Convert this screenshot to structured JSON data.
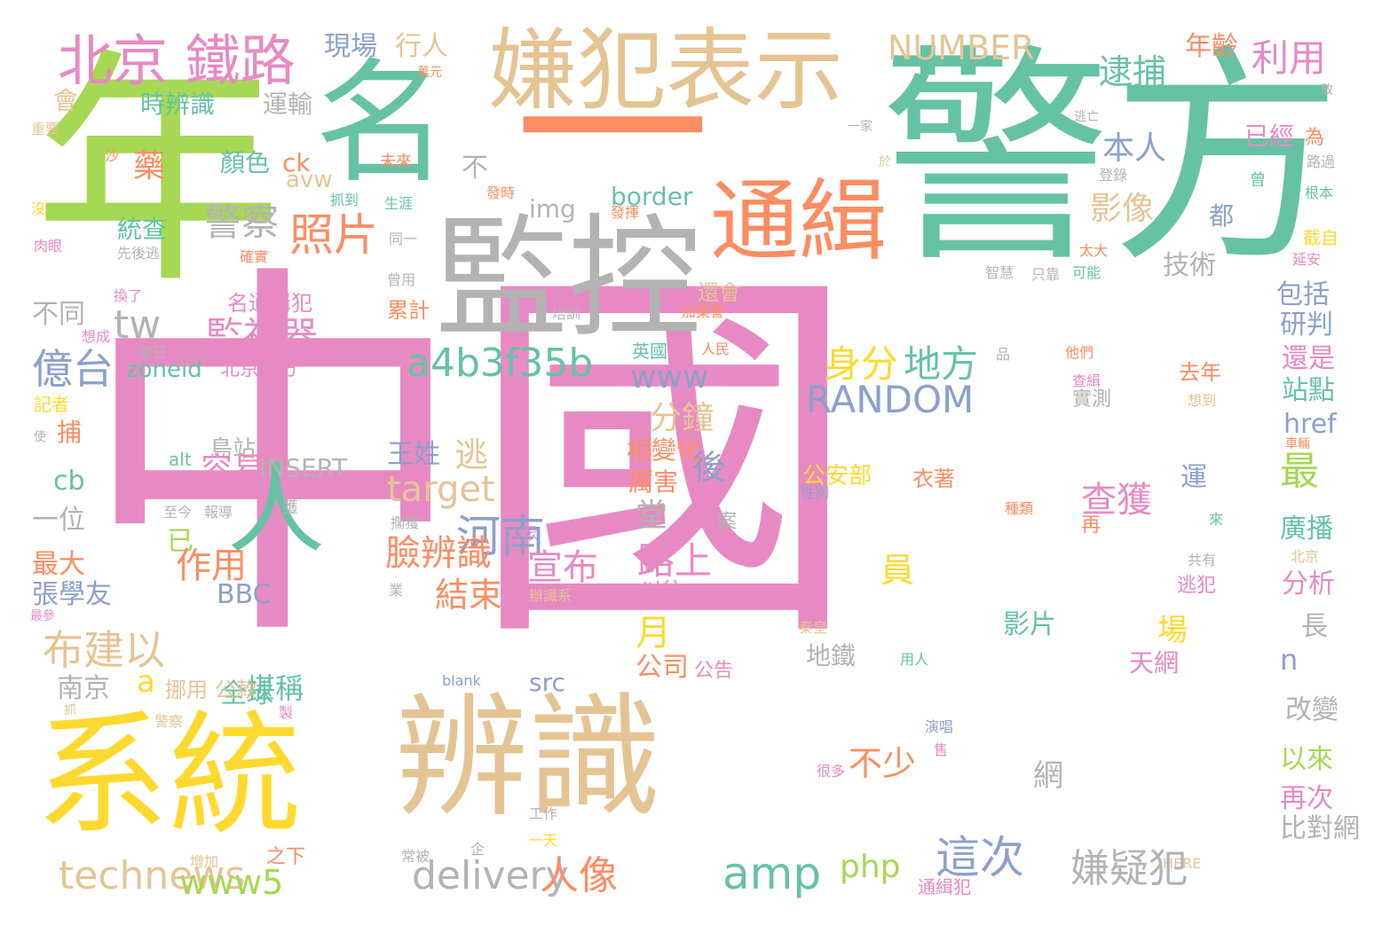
{
  "palette": {
    "pink": "#e78ac3",
    "teal": "#66c2a5",
    "tan": "#e5c494",
    "orange": "#fc8d62",
    "green": "#a6d854",
    "yellow": "#ffd92f",
    "gray": "#b3b3b3",
    "blue": "#8da0cb"
  },
  "words": [
    {
      "text": "中國",
      "color": "pink"
    },
    {
      "text": "警方",
      "color": "teal"
    },
    {
      "text": "年",
      "color": "green"
    },
    {
      "text": "名",
      "color": "teal"
    },
    {
      "text": "一",
      "color": "orange"
    },
    {
      "text": "嫌犯表示",
      "color": "tan"
    },
    {
      "text": "監控",
      "color": "gray"
    },
    {
      "text": "通緝",
      "color": "orange"
    },
    {
      "text": "辨識",
      "color": "tan"
    },
    {
      "text": "系統",
      "color": "yellow"
    },
    {
      "text": "北京 鐵路",
      "color": "pink"
    },
    {
      "text": "人",
      "color": "teal"
    },
    {
      "text": "NUMBER",
      "color": "tan"
    },
    {
      "text": "現場",
      "color": "blue"
    },
    {
      "text": "行人",
      "color": "tan"
    },
    {
      "text": "年齡",
      "color": "orange"
    },
    {
      "text": "利用",
      "color": "pink"
    },
    {
      "text": "逮捕",
      "color": "teal"
    },
    {
      "text": "時辨識",
      "color": "teal"
    },
    {
      "text": "運輸",
      "color": "gray"
    },
    {
      "text": "會",
      "color": "tan"
    },
    {
      "text": "萬元",
      "color": "orange"
    },
    {
      "text": "敗",
      "color": "gray"
    },
    {
      "text": "一家",
      "color": "gray"
    },
    {
      "text": "逃亡",
      "color": "gray"
    },
    {
      "text": "已經",
      "color": "pink"
    },
    {
      "text": "為",
      "color": "orange"
    },
    {
      "text": "重要",
      "color": "tan"
    },
    {
      "text": "沙",
      "color": "orange"
    },
    {
      "text": "藥",
      "color": "orange"
    },
    {
      "text": "顏色",
      "color": "teal"
    },
    {
      "text": "ck",
      "color": "orange"
    },
    {
      "text": "avw",
      "color": "tan"
    },
    {
      "text": "未來",
      "color": "orange"
    },
    {
      "text": "不",
      "color": "gray"
    },
    {
      "text": "於",
      "color": "tan"
    },
    {
      "text": "本人",
      "color": "blue"
    },
    {
      "text": "路過",
      "color": "gray"
    },
    {
      "text": "登錄",
      "color": "gray"
    },
    {
      "text": "曾",
      "color": "teal"
    },
    {
      "text": "根本",
      "color": "teal"
    },
    {
      "text": "發時",
      "color": "orange"
    },
    {
      "text": "border",
      "color": "teal"
    },
    {
      "text": "抓到",
      "color": "teal"
    },
    {
      "text": "生涯",
      "color": "teal"
    },
    {
      "text": "img",
      "color": "gray"
    },
    {
      "text": "發揮",
      "color": "orange"
    },
    {
      "text": "警察",
      "color": "gray"
    },
    {
      "text": "照片",
      "color": "orange"
    },
    {
      "text": "影像",
      "color": "tan"
    },
    {
      "text": "都",
      "color": "blue"
    },
    {
      "text": "截自",
      "color": "yellow"
    },
    {
      "text": "沒",
      "color": "yellow"
    },
    {
      "text": "肉眼",
      "color": "pink"
    },
    {
      "text": "統查",
      "color": "teal"
    },
    {
      "text": "先後逃",
      "color": "gray"
    },
    {
      "text": "同一",
      "color": "gray"
    },
    {
      "text": "確實",
      "color": "orange"
    },
    {
      "text": "太大",
      "color": "orange"
    },
    {
      "text": "延安",
      "color": "pink"
    },
    {
      "text": "技術",
      "color": "gray"
    },
    {
      "text": "智慧",
      "color": "gray"
    },
    {
      "text": "只靠",
      "color": "gray"
    },
    {
      "text": "可能",
      "color": "teal"
    },
    {
      "text": "換了",
      "color": "pink"
    },
    {
      "text": "名通緝犯",
      "color": "pink"
    },
    {
      "text": "曾用",
      "color": "gray"
    },
    {
      "text": "還會",
      "color": "tan"
    },
    {
      "text": "包括",
      "color": "blue"
    },
    {
      "text": "不同",
      "color": "gray"
    },
    {
      "text": "tw",
      "color": "gray"
    },
    {
      "text": "累計",
      "color": "orange"
    },
    {
      "text": "培訓",
      "color": "gray"
    },
    {
      "text": "加業警",
      "color": "orange"
    },
    {
      "text": "研判",
      "color": "blue"
    },
    {
      "text": "想成",
      "color": "pink"
    },
    {
      "text": "監視器",
      "color": "pink"
    },
    {
      "text": "度日",
      "color": "gray"
    },
    {
      "text": "英國",
      "color": "teal"
    },
    {
      "text": "人民",
      "color": "orange"
    },
    {
      "text": "億台",
      "color": "blue"
    },
    {
      "text": "a4b3f35b",
      "color": "teal"
    },
    {
      "text": "身分",
      "color": "yellow"
    },
    {
      "text": "地方",
      "color": "teal"
    },
    {
      "text": "品",
      "color": "gray"
    },
    {
      "text": "他們",
      "color": "orange"
    },
    {
      "text": "還是",
      "color": "pink"
    },
    {
      "text": "zoneid",
      "color": "teal"
    },
    {
      "text": "北京警方",
      "color": "pink"
    },
    {
      "text": "www",
      "color": "blue"
    },
    {
      "text": "查緝",
      "color": "pink"
    },
    {
      "text": "去年",
      "color": "orange"
    },
    {
      "text": "站點",
      "color": "teal"
    },
    {
      "text": "記者",
      "color": "yellow"
    },
    {
      "text": "RANDOM",
      "color": "blue"
    },
    {
      "text": "實測",
      "color": "gray"
    },
    {
      "text": "想到",
      "color": "tan"
    },
    {
      "text": "分鐘",
      "color": "tan"
    },
    {
      "text": "href",
      "color": "blue"
    },
    {
      "text": "捕",
      "color": "orange"
    },
    {
      "text": "使",
      "color": "gray"
    },
    {
      "text": "alt",
      "color": "teal"
    },
    {
      "text": "島站",
      "color": "gray"
    },
    {
      "text": "相變化",
      "color": "orange"
    },
    {
      "text": "車輛",
      "color": "orange"
    },
    {
      "text": "王姓",
      "color": "blue"
    },
    {
      "text": "逃",
      "color": "tan"
    },
    {
      "text": "後",
      "color": "blue"
    },
    {
      "text": "最",
      "color": "green"
    },
    {
      "text": "容易",
      "color": "pink"
    },
    {
      "text": "INSERT",
      "color": "gray"
    },
    {
      "text": "target",
      "color": "tan"
    },
    {
      "text": "公安部",
      "color": "yellow"
    },
    {
      "text": "衣著",
      "color": "orange"
    },
    {
      "text": "運",
      "color": "blue"
    },
    {
      "text": "cb",
      "color": "teal"
    },
    {
      "text": "查獲",
      "color": "pink"
    },
    {
      "text": "厲害",
      "color": "orange"
    },
    {
      "text": "性別",
      "color": "blue"
    },
    {
      "text": "一位",
      "color": "gray"
    },
    {
      "text": "至今",
      "color": "gray"
    },
    {
      "text": "報導",
      "color": "gray"
    },
    {
      "text": "獲",
      "color": "gray"
    },
    {
      "text": "河南",
      "color": "blue"
    },
    {
      "text": "堂",
      "color": "gray"
    },
    {
      "text": "種類",
      "color": "orange"
    },
    {
      "text": "廣播",
      "color": "teal"
    },
    {
      "text": "再",
      "color": "orange"
    },
    {
      "text": "案",
      "color": "gray"
    },
    {
      "text": "來",
      "color": "teal"
    },
    {
      "text": "臉辨識",
      "color": "orange"
    },
    {
      "text": "擱獲",
      "color": "gray"
    },
    {
      "text": "大眾",
      "color": "pink"
    },
    {
      "text": "最大",
      "color": "orange"
    },
    {
      "text": "已",
      "color": "green"
    },
    {
      "text": "宣布",
      "color": "pink"
    },
    {
      "text": "北京",
      "color": "tan"
    },
    {
      "text": "路上",
      "color": "pink"
    },
    {
      "text": "員",
      "color": "yellow"
    },
    {
      "text": "作用",
      "color": "orange"
    },
    {
      "text": "共有",
      "color": "gray"
    },
    {
      "text": "逃犯",
      "color": "pink"
    },
    {
      "text": "分析",
      "color": "pink"
    },
    {
      "text": "張學友",
      "color": "blue"
    },
    {
      "text": "BBC",
      "color": "blue"
    },
    {
      "text": "結束",
      "color": "orange"
    },
    {
      "text": "業",
      "color": "gray"
    },
    {
      "text": "辦識系",
      "color": "tan"
    },
    {
      "text": "以往",
      "color": "pink"
    },
    {
      "text": "最參",
      "color": "pink"
    },
    {
      "text": "秦皇",
      "color": "tan"
    },
    {
      "text": "月",
      "color": "yellow"
    },
    {
      "text": "影片",
      "color": "teal"
    },
    {
      "text": "場",
      "color": "yellow"
    },
    {
      "text": "長",
      "color": "gray"
    },
    {
      "text": "布建以",
      "color": "tan"
    },
    {
      "text": "地鐵",
      "color": "gray"
    },
    {
      "text": "用人",
      "color": "teal"
    },
    {
      "text": "n",
      "color": "blue"
    },
    {
      "text": "a",
      "color": "yellow"
    },
    {
      "text": "全球",
      "color": "teal"
    },
    {
      "text": "堪稱",
      "color": "teal"
    },
    {
      "text": "公司",
      "color": "orange"
    },
    {
      "text": "公告",
      "color": "pink"
    },
    {
      "text": "挪用 公款",
      "color": "tan"
    },
    {
      "text": "blank",
      "color": "blue"
    },
    {
      "text": "src",
      "color": "blue"
    },
    {
      "text": "天網",
      "color": "pink"
    },
    {
      "text": "南京",
      "color": "gray"
    },
    {
      "text": "抓",
      "color": "tan"
    },
    {
      "text": "改變",
      "color": "gray"
    },
    {
      "text": "警察",
      "color": "tan"
    },
    {
      "text": "製",
      "color": "pink"
    },
    {
      "text": "演唱",
      "color": "blue"
    },
    {
      "text": "以來",
      "color": "green"
    },
    {
      "text": "不少",
      "color": "orange"
    },
    {
      "text": "網",
      "color": "gray"
    },
    {
      "text": "售",
      "color": "pink"
    },
    {
      "text": "很多",
      "color": "pink"
    },
    {
      "text": "再次",
      "color": "pink"
    },
    {
      "text": "工作",
      "color": "gray"
    },
    {
      "text": "一天",
      "color": "yellow"
    },
    {
      "text": "比對網",
      "color": "gray"
    },
    {
      "text": "增加",
      "color": "tan"
    },
    {
      "text": "之下",
      "color": "orange"
    },
    {
      "text": "常被",
      "color": "gray"
    },
    {
      "text": "企",
      "color": "gray"
    },
    {
      "text": "HERE",
      "color": "tan"
    },
    {
      "text": "technews",
      "color": "tan"
    },
    {
      "text": "www5",
      "color": "green"
    },
    {
      "text": "delivery",
      "color": "gray"
    },
    {
      "text": "人像",
      "color": "orange"
    },
    {
      "text": "amp",
      "color": "teal"
    },
    {
      "text": "這次",
      "color": "blue"
    },
    {
      "text": "php",
      "color": "green"
    },
    {
      "text": "嫌疑犯",
      "color": "gray"
    },
    {
      "text": "通緝犯",
      "color": "pink"
    }
  ]
}
